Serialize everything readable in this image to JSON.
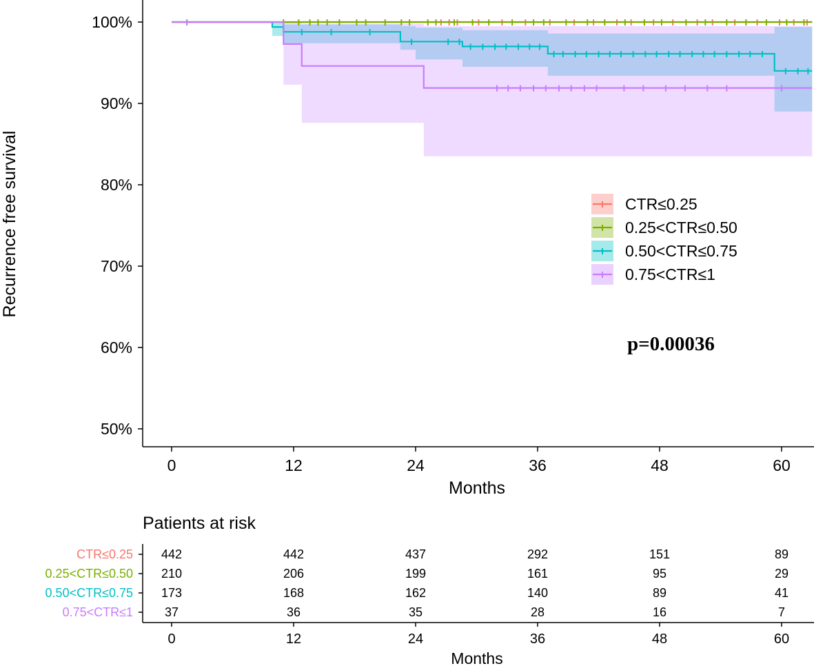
{
  "chart_data": {
    "type": "line",
    "subtype": "kaplan-meier",
    "ylabel": "Recurrence free survival",
    "xlabel": "Months",
    "xlim": [
      -2.5,
      63
    ],
    "ylim": [
      0.475,
      1.0
    ],
    "x_ticks": [
      0,
      12,
      24,
      36,
      48,
      60
    ],
    "y_ticks": [
      0.5,
      0.6,
      0.7,
      0.8,
      0.9,
      1.0
    ],
    "y_tick_labels": [
      "50%",
      "60%",
      "70%",
      "80%",
      "90%",
      "100%"
    ],
    "legend_position": "right-middle",
    "p_value_text": "p=0.00036",
    "series": [
      {
        "name": "CTR≤0.25",
        "color": "#F8766D",
        "fill": "#F8766D",
        "steps": [
          [
            0,
            1.0
          ],
          [
            63,
            1.0
          ]
        ],
        "ci": [
          [
            0,
            1.0,
            1.0
          ],
          [
            63,
            1.0,
            0.998
          ]
        ],
        "censor_times": [
          26.5,
          27.3,
          28.1,
          30.2,
          32.5,
          34.8,
          37.2,
          39.6,
          41.5,
          43.8,
          45.2,
          47.4,
          49.3,
          51.7,
          53.2,
          55.4,
          57.6,
          59.8,
          61.2,
          62.5
        ]
      },
      {
        "name": "0.25<CTR≤0.50",
        "color": "#7CAE00",
        "fill": "#7CAE00",
        "steps": [
          [
            0,
            1.0
          ],
          [
            63,
            1.0
          ]
        ],
        "ci": [
          [
            0,
            1.0,
            1.0
          ],
          [
            63,
            1.0,
            0.997
          ]
        ],
        "censor_times": [
          1.5,
          11.0,
          12.5,
          13.6,
          14.4,
          15.3,
          16.5,
          18.2,
          19.1,
          21.0,
          22.6,
          23.4,
          25.2,
          26.0,
          27.8,
          29.6,
          31.2,
          33.5,
          35.6,
          36.6,
          38.8,
          40.9,
          42.6,
          44.6,
          46.5,
          48.2,
          50.6,
          52.5,
          54.6,
          56.5,
          58.5,
          60.5,
          62.2
        ]
      },
      {
        "name": "0.50<CTR≤0.75",
        "color": "#00BFC4",
        "fill": "#00BFC4",
        "steps": [
          [
            0,
            1.0
          ],
          [
            9.9,
            0.994
          ],
          [
            11.0,
            0.988
          ],
          [
            22.5,
            0.982
          ],
          [
            22.5,
            0.976
          ],
          [
            28.6,
            0.97
          ],
          [
            37.0,
            0.961
          ],
          [
            59.3,
            0.94
          ],
          [
            63,
            0.94
          ]
        ],
        "ci": [
          [
            0,
            1.0,
            1.0
          ],
          [
            9.9,
            0.999,
            0.983
          ],
          [
            11.0,
            0.997,
            0.974
          ],
          [
            22.5,
            0.995,
            0.966
          ],
          [
            24.0,
            0.993,
            0.954
          ],
          [
            28.6,
            0.99,
            0.945
          ],
          [
            37.0,
            0.986,
            0.934
          ],
          [
            59.3,
            0.994,
            0.89
          ],
          [
            63,
            0.994,
            0.89
          ]
        ],
        "censor_times": [
          12.8,
          15.7,
          19.5,
          23.6,
          27.2,
          28.3,
          29.4,
          30.6,
          31.8,
          32.9,
          34.1,
          35.2,
          36.2,
          37.6,
          38.5,
          39.7,
          40.8,
          42.0,
          43.1,
          44.2,
          45.4,
          46.6,
          47.7,
          48.9,
          50.0,
          51.2,
          52.3,
          53.4,
          54.6,
          55.8,
          56.9,
          58.1,
          60.4,
          61.6,
          62.6
        ]
      },
      {
        "name": "0.75<CTR≤1",
        "color": "#C77CFF",
        "fill": "#C77CFF",
        "steps": [
          [
            0,
            1.0
          ],
          [
            11.0,
            0.973
          ],
          [
            12.8,
            0.946
          ],
          [
            24.8,
            0.919
          ],
          [
            63,
            0.919
          ]
        ],
        "ci": [
          [
            0,
            1.0,
            1.0
          ],
          [
            11.0,
            1.0,
            0.923
          ],
          [
            12.8,
            0.998,
            0.876
          ],
          [
            24.8,
            0.995,
            0.835
          ],
          [
            63,
            0.995,
            0.835
          ]
        ],
        "censor_times": [
          1.5,
          32.0,
          33.1,
          34.3,
          35.6,
          36.8,
          38.1,
          39.3,
          40.6,
          41.8,
          44.5,
          46.4,
          48.6,
          50.5,
          52.7,
          54.6,
          60.0
        ]
      }
    ],
    "risk_table": {
      "title": "Patients at risk",
      "xlabel": "Months",
      "times": [
        0,
        12,
        24,
        36,
        48,
        60
      ],
      "rows": [
        {
          "label": "CTR≤0.25",
          "values": [
            442,
            442,
            437,
            292,
            151,
            89
          ]
        },
        {
          "label": "0.25<CTR≤0.50",
          "values": [
            210,
            206,
            199,
            161,
            95,
            29
          ]
        },
        {
          "label": "0.50<CTR≤0.75",
          "values": [
            173,
            168,
            162,
            140,
            89,
            41
          ]
        },
        {
          "label": "0.75<CTR≤1",
          "values": [
            37,
            36,
            35,
            28,
            16,
            7
          ]
        }
      ]
    }
  }
}
